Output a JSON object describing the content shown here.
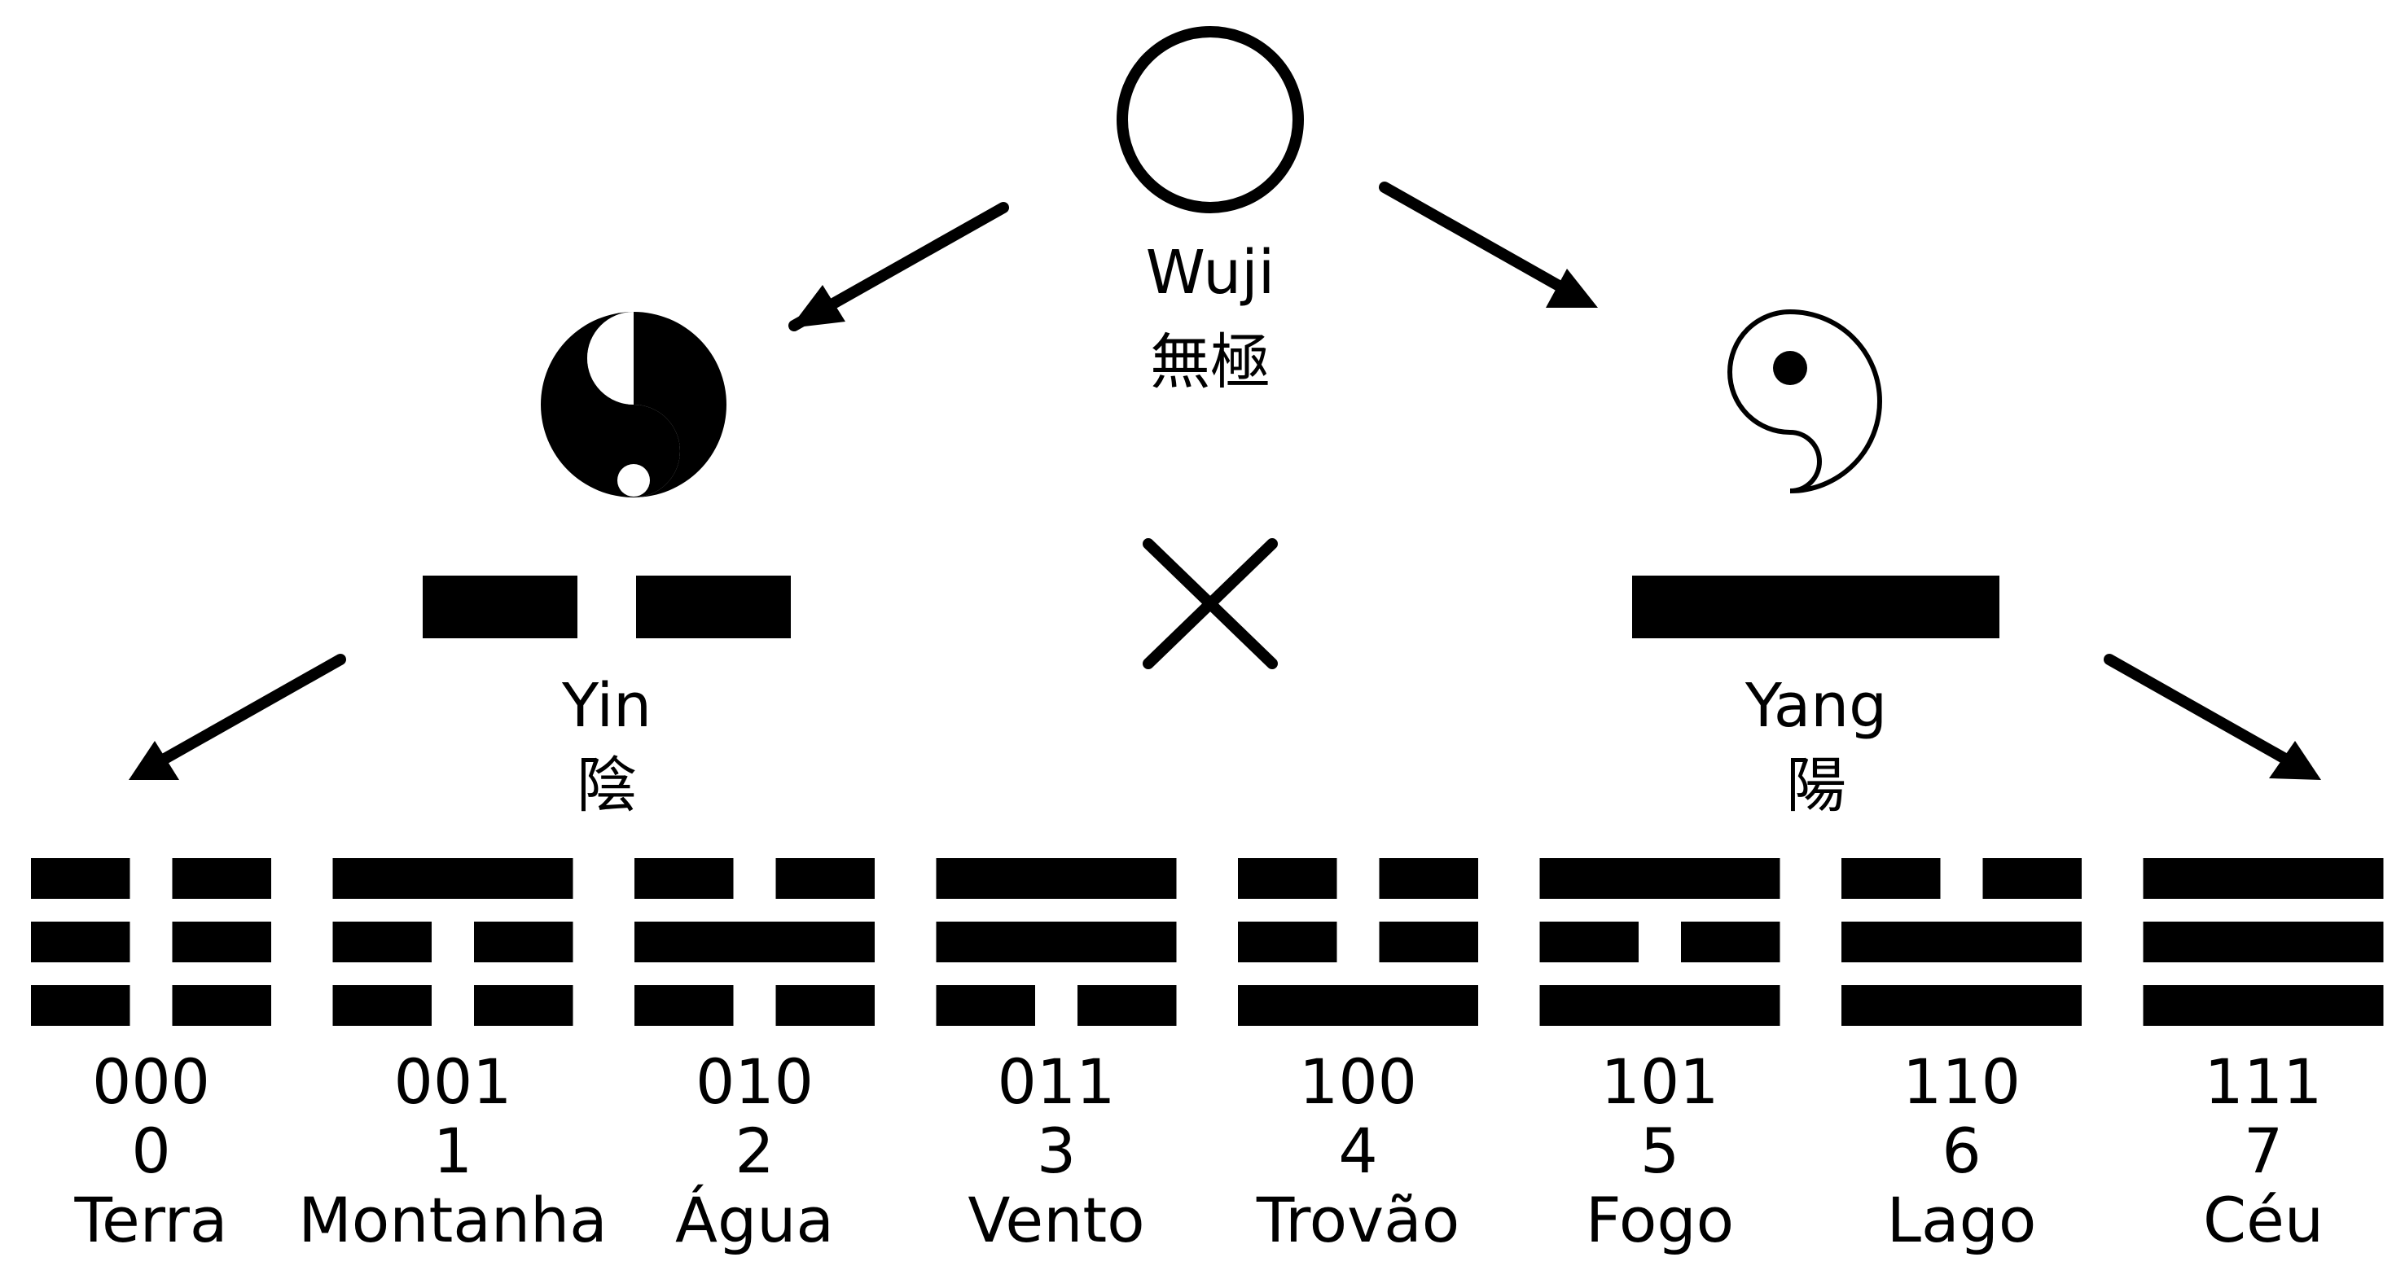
{
  "colors": {
    "ink": "#000000",
    "paper": "#ffffff"
  },
  "wuji": {
    "label": "Wuji",
    "chinese": "無極",
    "icon": "empty-circle-icon"
  },
  "yin": {
    "label": "Yin",
    "chinese": "陰",
    "icon": "yin-taiji-icon",
    "line": "broken"
  },
  "yang": {
    "label": "Yang",
    "chinese": "陽",
    "icon": "yang-taiji-icon",
    "line": "solid"
  },
  "cross": {
    "icon": "cross-icon"
  },
  "trigrams": [
    {
      "binary": "000",
      "decimal": "0",
      "name": "Terra",
      "lines_top_to_bottom": [
        0,
        0,
        0
      ]
    },
    {
      "binary": "001",
      "decimal": "1",
      "name": "Montanha",
      "lines_top_to_bottom": [
        1,
        0,
        0
      ]
    },
    {
      "binary": "010",
      "decimal": "2",
      "name": "Água",
      "lines_top_to_bottom": [
        0,
        1,
        0
      ]
    },
    {
      "binary": "011",
      "decimal": "3",
      "name": "Vento",
      "lines_top_to_bottom": [
        1,
        1,
        0
      ]
    },
    {
      "binary": "100",
      "decimal": "4",
      "name": "Trovão",
      "lines_top_to_bottom": [
        0,
        0,
        1
      ]
    },
    {
      "binary": "101",
      "decimal": "5",
      "name": "Fogo",
      "lines_top_to_bottom": [
        1,
        0,
        1
      ]
    },
    {
      "binary": "110",
      "decimal": "6",
      "name": "Lago",
      "lines_top_to_bottom": [
        0,
        1,
        1
      ]
    },
    {
      "binary": "111",
      "decimal": "7",
      "name": "Céu",
      "lines_top_to_bottom": [
        1,
        1,
        1
      ]
    }
  ]
}
